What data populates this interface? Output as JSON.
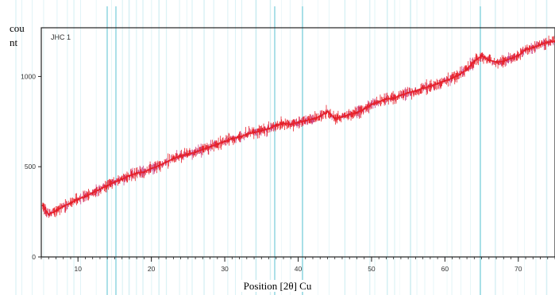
{
  "chart_data": {
    "type": "line",
    "title": "",
    "panel_label": "JHC 1",
    "ylabel_lines": [
      "cou",
      "nt"
    ],
    "xlabel": "Position [2θ] Cu",
    "xlim": [
      5,
      75
    ],
    "ylim": [
      0,
      1270
    ],
    "x_ticks": [
      10,
      20,
      30,
      40,
      50,
      60,
      70
    ],
    "y_ticks": [
      0,
      500,
      1000
    ],
    "series": [
      {
        "color": "#e8202a",
        "x": [
          5.2,
          6,
          7,
          8,
          9,
          10,
          11,
          12,
          13,
          14,
          15,
          16,
          17,
          18,
          19,
          20,
          21,
          22,
          23,
          24,
          25,
          26,
          27,
          28,
          29,
          30,
          31,
          32,
          33,
          34,
          35,
          36,
          37,
          38,
          39,
          40,
          41,
          42,
          43,
          44,
          45,
          46,
          47,
          48,
          49,
          50,
          51,
          52,
          53,
          54,
          55,
          56,
          57,
          58,
          59,
          60,
          61,
          62,
          63,
          64,
          65,
          66,
          67,
          68,
          69,
          70,
          71,
          72,
          73,
          74,
          75
        ],
        "y": [
          285,
          235,
          255,
          280,
          300,
          320,
          335,
          355,
          375,
          395,
          415,
          430,
          450,
          465,
          470,
          490,
          505,
          525,
          545,
          560,
          570,
          580,
          595,
          610,
          625,
          640,
          655,
          665,
          680,
          690,
          700,
          710,
          730,
          740,
          735,
          745,
          755,
          765,
          780,
          805,
          770,
          775,
          790,
          800,
          820,
          845,
          860,
          875,
          880,
          895,
          910,
          920,
          935,
          945,
          960,
          975,
          990,
          1010,
          1040,
          1085,
          1115,
          1090,
          1080,
          1085,
          1100,
          1115,
          1150,
          1160,
          1175,
          1190,
          1195
        ]
      }
    ]
  }
}
